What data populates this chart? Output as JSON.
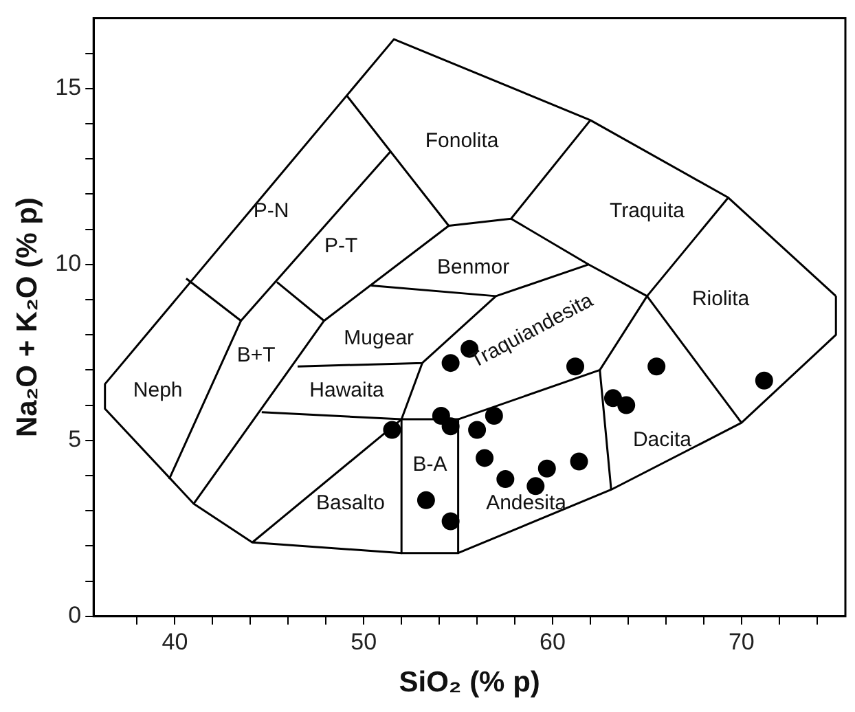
{
  "chart_data": {
    "type": "scatter",
    "xlabel": "SiO₂ (% p)",
    "ylabel": "Na₂O + K₂O (% p)",
    "xlim": [
      35.7,
      75.5
    ],
    "ylim": [
      0,
      17
    ],
    "xticks": [
      {
        "value": 38,
        "label": null
      },
      40,
      {
        "value": 42,
        "label": null
      },
      {
        "value": 44,
        "label": null
      },
      {
        "value": 46,
        "label": null
      },
      {
        "value": 48,
        "label": null
      },
      50,
      {
        "value": 52,
        "label": null
      },
      {
        "value": 54,
        "label": null
      },
      {
        "value": 56,
        "label": null
      },
      {
        "value": 58,
        "label": null
      },
      60,
      {
        "value": 62,
        "label": null
      },
      {
        "value": 64,
        "label": null
      },
      {
        "value": 66,
        "label": null
      },
      {
        "value": 68,
        "label": null
      },
      70,
      {
        "value": 72,
        "label": null
      },
      {
        "value": 74,
        "label": null
      }
    ],
    "yticks": [
      0,
      {
        "value": 1,
        "label": null
      },
      {
        "value": 2,
        "label": null
      },
      {
        "value": 3,
        "label": null
      },
      {
        "value": 4,
        "label": null
      },
      5,
      {
        "value": 6,
        "label": null
      },
      {
        "value": 7,
        "label": null
      },
      {
        "value": 8,
        "label": null
      },
      {
        "value": 9,
        "label": null
      },
      10,
      {
        "value": 11,
        "label": null
      },
      {
        "value": 12,
        "label": null
      },
      {
        "value": 13,
        "label": null
      },
      {
        "value": 14,
        "label": null
      },
      15,
      {
        "value": 16,
        "label": null
      }
    ],
    "grid": false,
    "legend": false,
    "marker": "circle",
    "line_style": "solid",
    "series": [
      {
        "color": "#000000",
        "x": [
          51.5,
          54.6,
          55.6,
          54.1,
          54.6,
          53.3,
          54.6,
          56.0,
          56.4,
          56.9,
          57.5,
          59.1,
          59.7,
          61.4,
          61.2,
          63.2,
          63.9,
          65.5,
          71.2
        ],
        "values": [
          5.3,
          7.2,
          7.6,
          5.7,
          5.4,
          3.3,
          2.7,
          5.3,
          4.5,
          5.7,
          3.9,
          3.7,
          4.2,
          4.4,
          7.1,
          6.2,
          6.0,
          7.1,
          6.7
        ]
      },
      {
        "type": "line",
        "marker": "none",
        "color": "#000000",
        "x": [
          36.3,
          51.6,
          62.0,
          69.3,
          75.0
        ],
        "values": [
          6.6,
          16.4,
          14.1,
          11.9,
          9.1
        ]
      },
      {
        "type": "line",
        "marker": "none",
        "color": "#000000",
        "x": [
          36.3,
          36.3,
          41.0,
          44.1,
          52.0,
          55.0,
          63.1,
          70.0,
          75.0,
          75.0
        ],
        "values": [
          6.6,
          5.9,
          3.2,
          2.1,
          1.8,
          1.8,
          3.6,
          5.5,
          8.0,
          9.1
        ]
      },
      {
        "type": "line",
        "marker": "none",
        "color": "#000000",
        "x": [
          40.6,
          43.5,
          51.4
        ],
        "values": [
          9.6,
          8.4,
          13.2
        ]
      },
      {
        "type": "line",
        "marker": "none",
        "color": "#000000",
        "x": [
          39.7,
          43.5
        ],
        "values": [
          3.9,
          8.4
        ]
      },
      {
        "type": "line",
        "marker": "none",
        "color": "#000000",
        "x": [
          41.0,
          47.9,
          54.5
        ],
        "values": [
          3.2,
          8.4,
          11.1
        ]
      },
      {
        "type": "line",
        "marker": "none",
        "color": "#000000",
        "x": [
          45.4,
          47.9
        ],
        "values": [
          9.5,
          8.4
        ]
      },
      {
        "type": "line",
        "marker": "none",
        "color": "#000000",
        "x": [
          46.5,
          53.1,
          57.0,
          61.9,
          65.0,
          69.3
        ],
        "values": [
          7.1,
          7.2,
          9.1,
          10.0,
          9.1,
          11.9
        ]
      },
      {
        "type": "line",
        "marker": "none",
        "color": "#000000",
        "x": [
          50.4,
          57.0
        ],
        "values": [
          9.4,
          9.1
        ]
      },
      {
        "type": "line",
        "marker": "none",
        "color": "#000000",
        "x": [
          49.1,
          54.5,
          57.8,
          62.0
        ],
        "values": [
          14.8,
          11.1,
          11.3,
          14.1
        ]
      },
      {
        "type": "line",
        "marker": "none",
        "color": "#000000",
        "x": [
          57.8,
          61.9
        ],
        "values": [
          11.3,
          10.0
        ]
      },
      {
        "type": "line",
        "marker": "none",
        "color": "#000000",
        "x": [
          44.6,
          52.0,
          55.0,
          62.5,
          65.0
        ],
        "values": [
          5.8,
          5.6,
          5.6,
          7.0,
          9.1
        ]
      },
      {
        "type": "line",
        "marker": "none",
        "color": "#000000",
        "x": [
          62.5,
          63.1
        ],
        "values": [
          7.0,
          3.6
        ]
      },
      {
        "type": "line",
        "marker": "none",
        "color": "#000000",
        "x": [
          65.0,
          70.0
        ],
        "values": [
          9.1,
          5.5
        ]
      },
      {
        "type": "line",
        "marker": "none",
        "color": "#000000",
        "x": [
          53.1,
          52.0,
          52.0
        ],
        "values": [
          7.2,
          5.6,
          1.8
        ]
      },
      {
        "type": "line",
        "marker": "none",
        "color": "#000000",
        "x": [
          55.0,
          55.0
        ],
        "values": [
          5.6,
          1.8
        ]
      },
      {
        "type": "line",
        "marker": "none",
        "color": "#000000",
        "x": [
          44.1,
          52.0
        ],
        "values": [
          2.1,
          5.6
        ]
      }
    ],
    "annotations": [
      "Fonolita",
      "P-N",
      "P-T",
      "Benmor",
      "Traquita",
      "Riolita",
      "Mugear",
      "Hawaita",
      "Neph",
      "B+T",
      "Traquiandesita",
      "Basalto",
      "B-A",
      "Andesita",
      "Dacita"
    ]
  }
}
